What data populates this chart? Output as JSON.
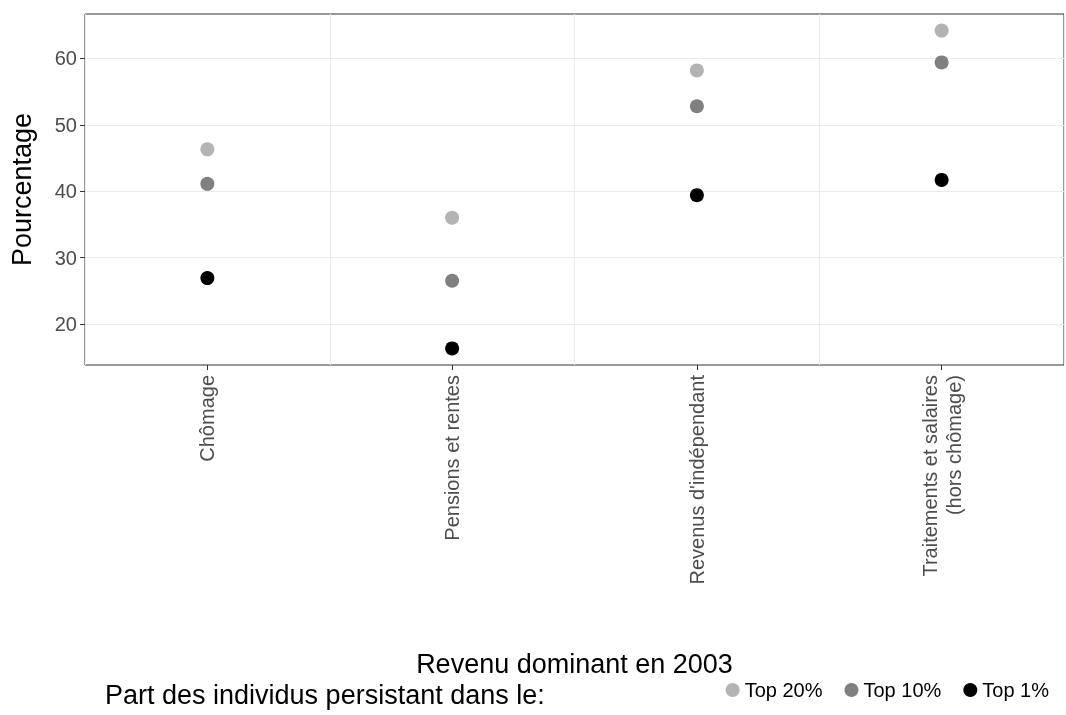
{
  "chart_data": {
    "type": "scatter",
    "xlabel": "Revenu dominant en 2003",
    "ylabel": "Pourcentage",
    "legend_title": "Part des individus persistant dans le:",
    "categories": [
      "Chômage",
      "Pensions et rentes",
      "Revenus d'indépendant",
      "Traitements et salaires\n(hors chômage)"
    ],
    "series": [
      {
        "name": "Top 20%",
        "color": "#b3b3b3",
        "values": [
          46.3,
          36.0,
          58.2,
          64.2
        ]
      },
      {
        "name": "Top 10%",
        "color": "#808080",
        "values": [
          41.1,
          26.5,
          52.8,
          59.4
        ]
      },
      {
        "name": "Top 1%",
        "color": "#000000",
        "values": [
          26.9,
          16.3,
          39.4,
          41.7
        ]
      }
    ],
    "ylim": [
      13.8,
      66.7
    ],
    "yticks": [
      20,
      30,
      40,
      50,
      60
    ],
    "grid": true,
    "legend": "bottom",
    "marker": "circle"
  }
}
